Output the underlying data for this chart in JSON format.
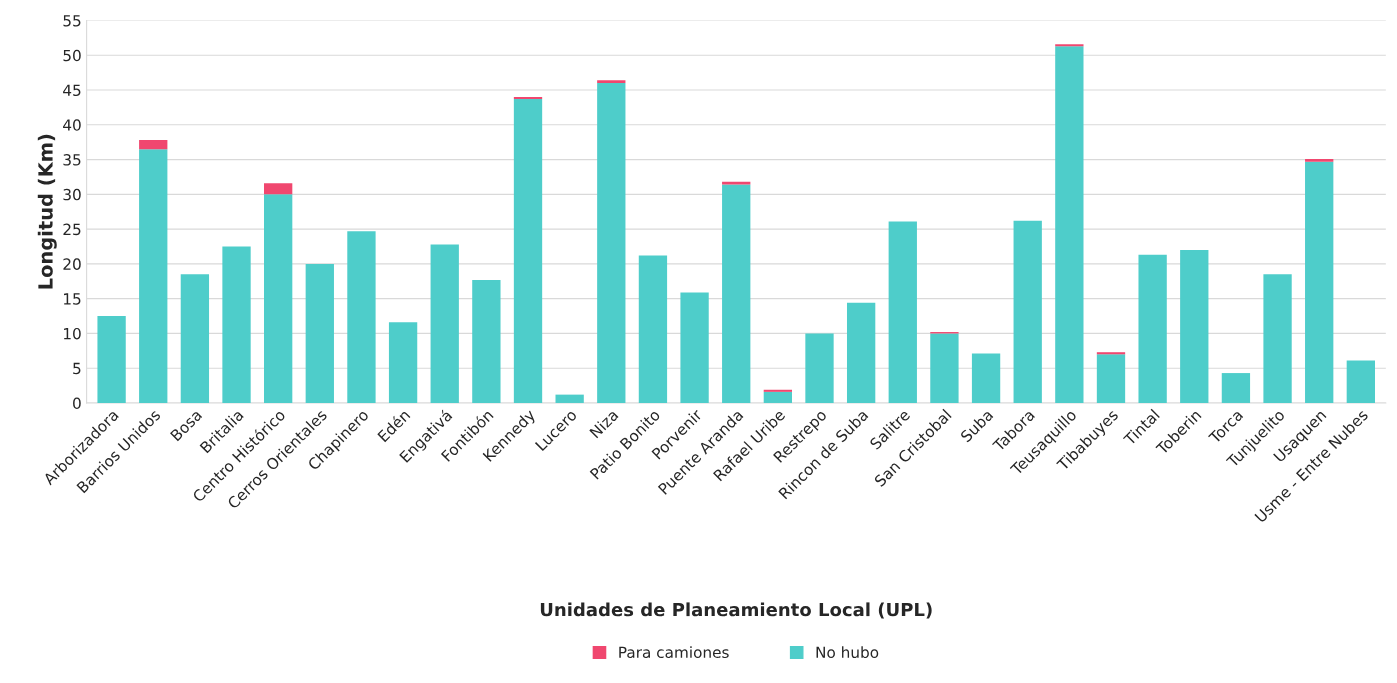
{
  "chart_data": {
    "type": "bar",
    "stacked": true,
    "xlabel": "Unidades de Planeamiento Local (UPL)",
    "ylabel": "Longitud (Km)",
    "categories": [
      "Arborizadora",
      "Barrios Unidos",
      "Bosa",
      "Britalia",
      "Centro Histórico",
      "Cerros Orientales",
      "Chapinero",
      "Edén",
      "Engativá",
      "Fontibón",
      "Kennedy",
      "Lucero",
      "Niza",
      "Patio Bonito",
      "Porvenir",
      "Puente Aranda",
      "Rafael Uribe",
      "Restrepo",
      "Rincon de Suba",
      "Salitre",
      "San Cristobal",
      "Suba",
      "Tabora",
      "Teusaquillo",
      "Tibabuyes",
      "Tintal",
      "Toberin",
      "Torca",
      "Tunjuelito",
      "Usaquen",
      "Usme - Entre Nubes"
    ],
    "series": [
      {
        "name": "No hubo",
        "color": "#4ecdca",
        "values": [
          12.5,
          36.5,
          18.5,
          22.5,
          30.0,
          20.0,
          24.7,
          11.6,
          22.8,
          17.7,
          43.7,
          1.2,
          46.0,
          21.2,
          15.9,
          31.4,
          1.6,
          10.0,
          14.4,
          26.1,
          10.0,
          7.1,
          26.2,
          51.3,
          7.0,
          21.3,
          22.0,
          4.3,
          18.5,
          34.7,
          6.1
        ]
      },
      {
        "name": "Para camiones",
        "color": "#f0476f",
        "values": [
          null,
          1.3,
          null,
          null,
          1.6,
          null,
          null,
          null,
          null,
          null,
          0.3,
          null,
          0.4,
          null,
          null,
          0.4,
          0.3,
          null,
          null,
          null,
          0.2,
          null,
          null,
          0.3,
          0.3,
          null,
          null,
          null,
          null,
          0.4,
          null
        ]
      }
    ],
    "ylim": [
      0,
      55
    ],
    "yticks": [
      0,
      5,
      10,
      15,
      20,
      25,
      30,
      35,
      40,
      45,
      50,
      55
    ],
    "grid": "y",
    "legend": "bottom"
  }
}
